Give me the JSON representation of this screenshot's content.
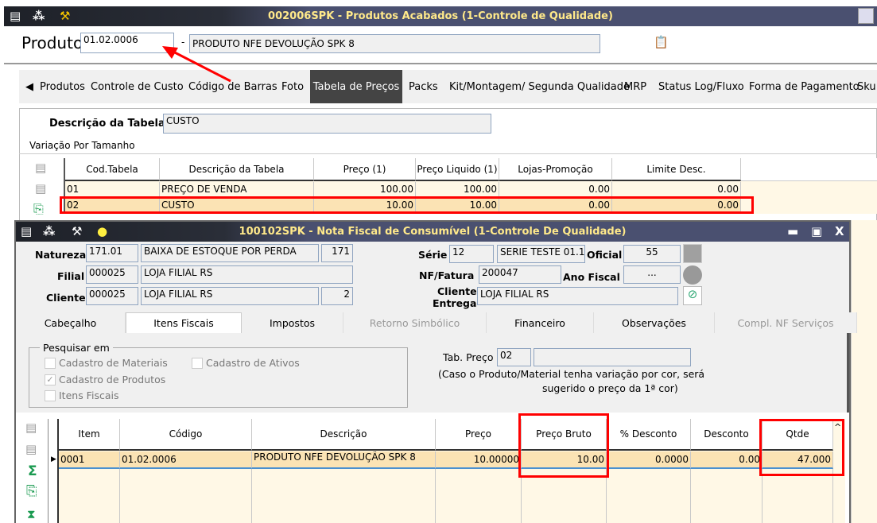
{
  "main_window": {
    "title": "002006SPK - Produtos Acabados (1-Controle de Qualidade)",
    "product_label": "Produto",
    "product_code": "01.02.0006",
    "product_sep": "-",
    "product_name": "PRODUTO NFE DEVOLUÇÃO SPK 8",
    "tabs": [
      "Produtos",
      "Controle de Custo",
      "Código de Barras",
      "Foto",
      "Tabela de Preços",
      "Packs",
      "Kit/Montagem/ Segunda Qualidade",
      "MRP",
      "Status Log/Fluxo",
      "Forma de Pagamento",
      "Sku"
    ],
    "active_tab": "Tabela de Preços",
    "desc_label": "Descrição da Tabela",
    "desc_value": "CUSTO",
    "variation_label": "Variação Por Tamanho",
    "table": {
      "columns": [
        "Cod.Tabela",
        "Descrição da Tabela",
        "Preço (1)",
        "Preço Liquido (1)",
        "Lojas-Promoção",
        "Limite Desc."
      ],
      "rows": [
        [
          "01",
          "PREÇO DE VENDA",
          "100.00",
          "100.00",
          "0.00",
          "0.00"
        ],
        [
          "02",
          "CUSTO",
          "10.00",
          "10.00",
          "0.00",
          "0.00"
        ]
      ]
    }
  },
  "nf_window": {
    "title": "100102SPK - Nota Fiscal de Consumível (1-Controle De Qualidade)",
    "natureza_label": "Natureza",
    "natureza_code": "171.01",
    "natureza_desc": "BAIXA DE ESTOQUE POR PERDA",
    "natureza_num": "171",
    "filial_label": "Filial",
    "filial_code": "000025",
    "filial_desc": "LOJA FILIAL RS",
    "cliente_label": "Cliente",
    "cliente_code": "000025",
    "cliente_desc": "LOJA FILIAL RS",
    "cliente_num": "2",
    "serie_label": "Série",
    "serie_code": "12",
    "serie_desc": "SERIE TESTE 01.1",
    "oficial_label": "Oficial",
    "oficial_value": "55",
    "nf_label": "NF/Fatura",
    "nf_value": "200047",
    "ano_label": "Ano Fiscal",
    "ano_value": "...",
    "entrega_label_1": "Cliente",
    "entrega_label_2": "Entrega",
    "entrega_value": "LOJA FILIAL RS",
    "tabs": [
      "Cabeçalho",
      "Itens Fiscais",
      "Impostos",
      "Retorno Simbólico",
      "Financeiro",
      "Observações",
      "Compl. NF Serviços"
    ],
    "active_tab": "Itens Fiscais",
    "search_group": "Pesquisar em",
    "checkboxes": [
      {
        "label": "Cadastro de Materiais",
        "checked": false
      },
      {
        "label": "Cadastro de Ativos",
        "checked": false
      },
      {
        "label": "Cadastro de Produtos",
        "checked": true
      },
      {
        "label": "Itens Fiscais",
        "checked": false
      }
    ],
    "tab_preco_label": "Tab. Preço",
    "tab_preco_value": "02",
    "note_1": "(Caso o Produto/Material tenha variação por cor, será",
    "note_2": "sugerido o preço da 1ª cor)",
    "grid": {
      "columns": [
        "Item",
        "Código",
        "Descrição",
        "Preço",
        "Preço Bruto",
        "% Desconto",
        "Desconto",
        "Qtde"
      ],
      "rows": [
        [
          "0001",
          "01.02.0006",
          "PRODUTO NFE DEVOLUÇÃO SPK 8",
          "10.00000",
          "10.00",
          "0.0000",
          "0.00",
          "47.000"
        ]
      ]
    }
  },
  "colors": {
    "highlight": "#ff0000",
    "row_selected": "#fbe3b4",
    "row_bg": "#fff8e6",
    "titlebar_text": "#ffe98a"
  }
}
